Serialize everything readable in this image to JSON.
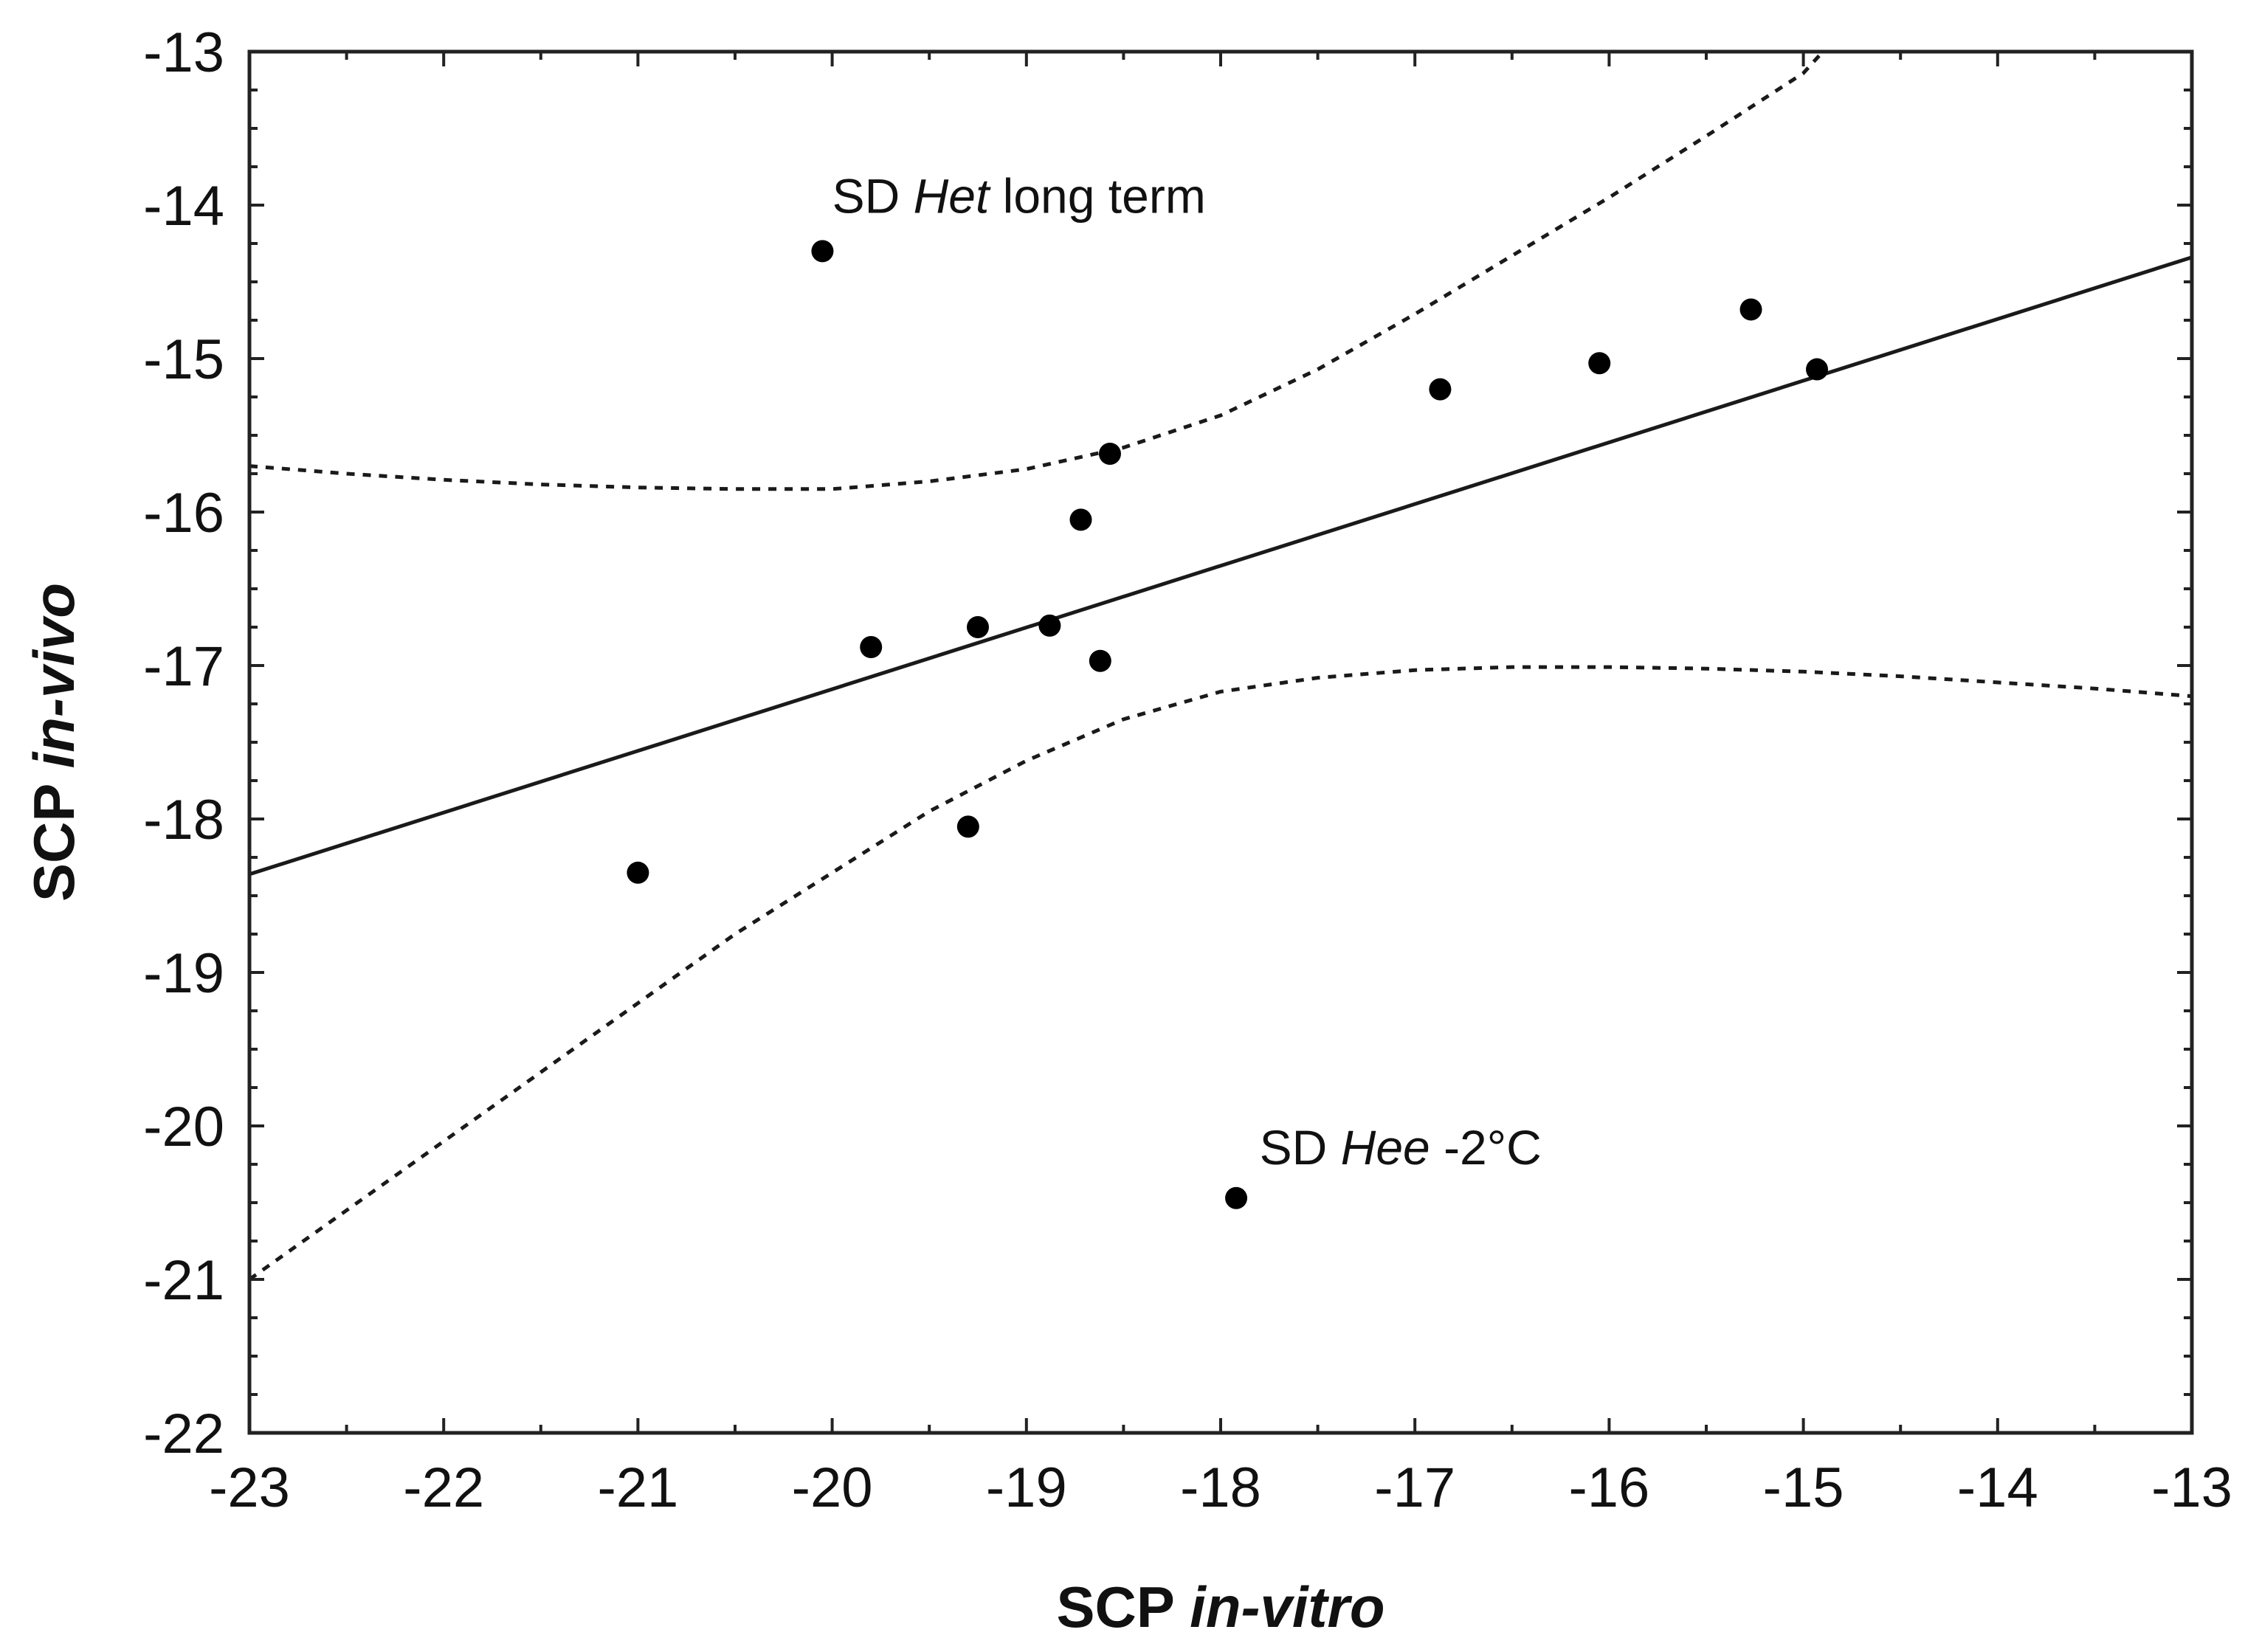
{
  "chart_data": {
    "type": "scatter",
    "title": "",
    "xlabel": {
      "prefix": "SCP",
      "italic": "in-vitro"
    },
    "ylabel": {
      "prefix": "SCP",
      "italic": "in-vivo"
    },
    "xlim": [
      -23,
      -13
    ],
    "ylim": [
      -22,
      -13
    ],
    "xticks": [
      -23,
      -22,
      -21,
      -20,
      -19,
      -18,
      -17,
      -16,
      -15,
      -14,
      -13
    ],
    "yticks": [
      -22,
      -21,
      -20,
      -19,
      -18,
      -17,
      -16,
      -15,
      -14,
      -13
    ],
    "xtick_labels": [
      "-23",
      "-22",
      "-21",
      "-20",
      "-19",
      "-18",
      "-17",
      "-16",
      "-15",
      "-14",
      "-13"
    ],
    "ytick_labels": [
      "-22",
      "-21",
      "-20",
      "-19",
      "-18",
      "-17",
      "-16",
      "-15",
      "-14",
      "-13"
    ],
    "grid": false,
    "colors": {
      "marker": "#000000",
      "line": "#1a1a1a",
      "axis": "#222222"
    },
    "points": [
      {
        "x": -21.0,
        "y": -18.35
      },
      {
        "x": -20.05,
        "y": -14.3
      },
      {
        "x": -19.8,
        "y": -16.88
      },
      {
        "x": -19.3,
        "y": -18.05
      },
      {
        "x": -19.25,
        "y": -16.75
      },
      {
        "x": -18.88,
        "y": -16.74
      },
      {
        "x": -18.72,
        "y": -16.05
      },
      {
        "x": -18.62,
        "y": -16.97
      },
      {
        "x": -18.57,
        "y": -15.62
      },
      {
        "x": -17.92,
        "y": -20.47
      },
      {
        "x": -16.87,
        "y": -15.2
      },
      {
        "x": -16.05,
        "y": -15.03
      },
      {
        "x": -15.27,
        "y": -14.68
      },
      {
        "x": -14.93,
        "y": -15.07
      }
    ],
    "regression_line": {
      "x": [
        -23,
        -13
      ],
      "y": [
        -18.36,
        -14.34
      ]
    },
    "confidence_band_upper": {
      "x": [
        -23,
        -22.5,
        -22,
        -21.5,
        -21,
        -20.5,
        -20,
        -19.5,
        -19,
        -18.5,
        -18,
        -17.5,
        -17,
        -16.5,
        -16,
        -15.5,
        -15,
        -14.9
      ],
      "y": [
        -15.7,
        -15.75,
        -15.79,
        -15.82,
        -15.84,
        -15.85,
        -15.85,
        -15.8,
        -15.72,
        -15.58,
        -15.37,
        -15.07,
        -14.71,
        -14.33,
        -13.95,
        -13.55,
        -13.14,
        -13.0
      ]
    },
    "confidence_band_lower": {
      "x": [
        -23,
        -22.5,
        -22,
        -21.5,
        -21,
        -20.5,
        -20,
        -19.5,
        -19,
        -18.5,
        -18,
        -17.5,
        -17,
        -16.5,
        -16,
        -15.5,
        -15,
        -14.5,
        -14,
        -13.5,
        -13
      ],
      "y": [
        -21.0,
        -20.55,
        -20.1,
        -19.65,
        -19.2,
        -18.75,
        -18.35,
        -17.95,
        -17.62,
        -17.35,
        -17.17,
        -17.08,
        -17.03,
        -17.01,
        -17.01,
        -17.02,
        -17.04,
        -17.07,
        -17.11,
        -17.15,
        -17.2
      ]
    },
    "annotations": [
      {
        "pre": "SD ",
        "italic": "Het",
        "post": " long term",
        "x": -20.0,
        "y": -14.05
      },
      {
        "pre": "SD ",
        "italic": "Hee",
        "post": " -2°C",
        "x": -17.8,
        "y": -20.25
      }
    ]
  }
}
